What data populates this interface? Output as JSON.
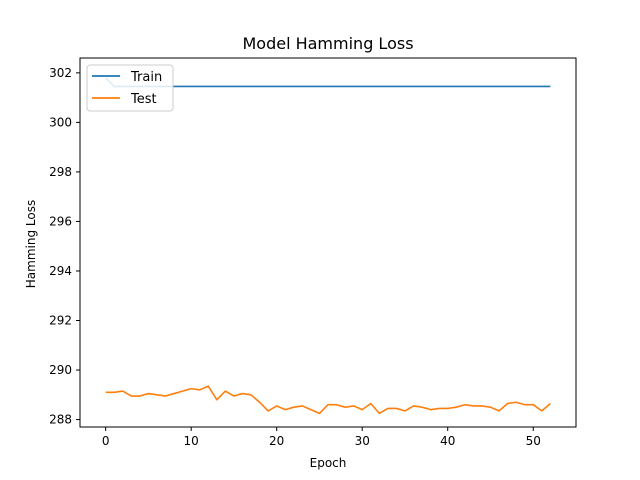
{
  "chart_data": {
    "type": "line",
    "title": "Model Hamming Loss",
    "xlabel": "Epoch",
    "ylabel": "Hamming Loss",
    "xlim": [
      -3,
      55
    ],
    "ylim": [
      287.7,
      302.6
    ],
    "xticks": [
      0,
      10,
      20,
      30,
      40,
      50
    ],
    "yticks": [
      288,
      290,
      292,
      294,
      296,
      298,
      300,
      302
    ],
    "grid": false,
    "legend_position": "top-left",
    "series": [
      {
        "name": "Train",
        "color": "#1f77b4",
        "x": [
          0,
          1,
          2,
          3,
          4,
          5,
          6,
          7,
          8,
          9,
          10,
          11,
          12,
          13,
          14,
          15,
          16,
          17,
          18,
          19,
          20,
          21,
          22,
          23,
          24,
          25,
          26,
          27,
          28,
          29,
          30,
          31,
          32,
          33,
          34,
          35,
          36,
          37,
          38,
          39,
          40,
          41,
          42,
          43,
          44,
          45,
          46,
          47,
          48,
          49,
          50,
          51,
          52
        ],
        "values": [
          301.8,
          301.45,
          301.45,
          301.45,
          301.45,
          301.45,
          301.45,
          301.45,
          301.45,
          301.45,
          301.45,
          301.45,
          301.45,
          301.45,
          301.45,
          301.45,
          301.45,
          301.45,
          301.45,
          301.45,
          301.45,
          301.45,
          301.45,
          301.45,
          301.45,
          301.45,
          301.45,
          301.45,
          301.45,
          301.45,
          301.45,
          301.45,
          301.45,
          301.45,
          301.45,
          301.45,
          301.45,
          301.45,
          301.45,
          301.45,
          301.45,
          301.45,
          301.45,
          301.45,
          301.45,
          301.45,
          301.45,
          301.45,
          301.45,
          301.45,
          301.45,
          301.45,
          301.45
        ]
      },
      {
        "name": "Test",
        "color": "#ff7f0e",
        "x": [
          0,
          1,
          2,
          3,
          4,
          5,
          6,
          7,
          8,
          9,
          10,
          11,
          12,
          13,
          14,
          15,
          16,
          17,
          18,
          19,
          20,
          21,
          22,
          23,
          24,
          25,
          26,
          27,
          28,
          29,
          30,
          31,
          32,
          33,
          34,
          35,
          36,
          37,
          38,
          39,
          40,
          41,
          42,
          43,
          44,
          45,
          46,
          47,
          48,
          49,
          50,
          51,
          52
        ],
        "values": [
          289.1,
          289.1,
          289.15,
          288.95,
          288.95,
          289.05,
          289.0,
          288.95,
          289.05,
          289.15,
          289.25,
          289.2,
          289.35,
          288.8,
          289.15,
          288.95,
          289.05,
          289.0,
          288.7,
          288.35,
          288.55,
          288.4,
          288.5,
          288.55,
          288.4,
          288.25,
          288.6,
          288.6,
          288.5,
          288.55,
          288.4,
          288.65,
          288.25,
          288.45,
          288.45,
          288.35,
          288.55,
          288.5,
          288.4,
          288.45,
          288.45,
          288.5,
          288.6,
          288.55,
          288.55,
          288.5,
          288.35,
          288.65,
          288.7,
          288.6,
          288.6,
          288.35,
          288.65
        ]
      }
    ]
  }
}
